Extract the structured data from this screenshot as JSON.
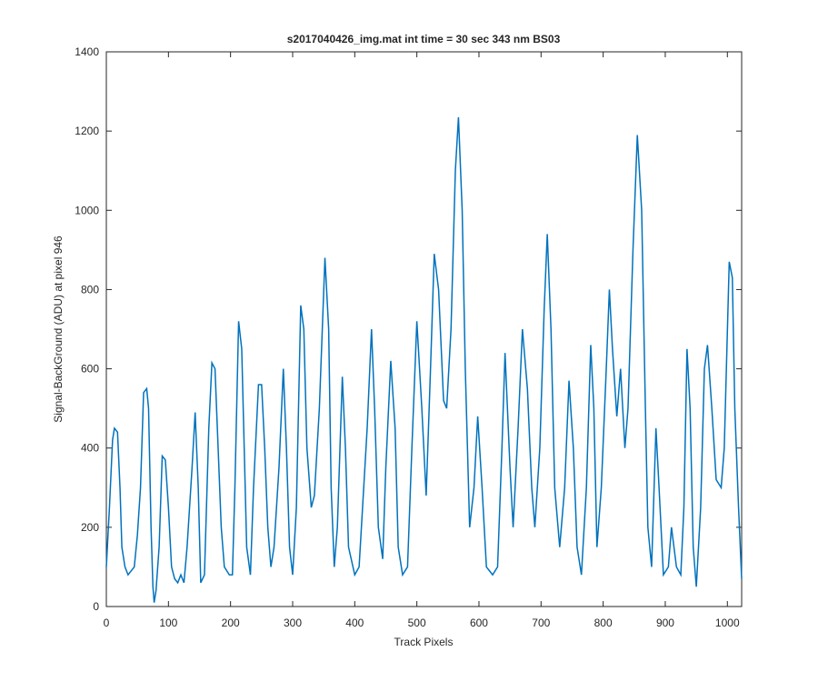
{
  "chart_data": {
    "type": "line",
    "title": "s2017040426_img.mat int time = 30 sec  343 nm BS03",
    "xlabel": "Track Pixels",
    "ylabel": "Signal-BackGround (ADU) at pixel 946",
    "xlim": [
      0,
      1023
    ],
    "ylim": [
      0,
      1400
    ],
    "xticks": [
      0,
      100,
      200,
      300,
      400,
      500,
      600,
      700,
      800,
      900,
      1000
    ],
    "yticks": [
      0,
      200,
      400,
      600,
      800,
      1000,
      1200,
      1400
    ],
    "series": [
      {
        "color": "#0072bd",
        "x": [
          0,
          5,
          10,
          13,
          18,
          22,
          25,
          30,
          35,
          40,
          45,
          50,
          55,
          60,
          65,
          68,
          72,
          75,
          77,
          80,
          85,
          90,
          95,
          100,
          105,
          110,
          115,
          120,
          125,
          130,
          138,
          143,
          148,
          152,
          158,
          165,
          170,
          175,
          180,
          185,
          190,
          198,
          203,
          207,
          213,
          218,
          222,
          226,
          232,
          237,
          245,
          250,
          255,
          260,
          265,
          270,
          278,
          285,
          290,
          295,
          300,
          306,
          313,
          318,
          323,
          330,
          335,
          343,
          352,
          358,
          362,
          367,
          372,
          380,
          385,
          390,
          400,
          407,
          420,
          427,
          432,
          438,
          445,
          450,
          458,
          465,
          470,
          477,
          485,
          492,
          500,
          508,
          515,
          522,
          528,
          535,
          543,
          548,
          555,
          562,
          567,
          573,
          578,
          585,
          592,
          598,
          605,
          612,
          622,
          630,
          637,
          642,
          650,
          655,
          663,
          670,
          678,
          685,
          690,
          698,
          705,
          710,
          716,
          722,
          730,
          738,
          745,
          752,
          758,
          765,
          773,
          780,
          785,
          790,
          797,
          805,
          810,
          815,
          822,
          828,
          835,
          840,
          848,
          855,
          862,
          868,
          872,
          878,
          885,
          890,
          897,
          905,
          910,
          918,
          925,
          930,
          935,
          940,
          945,
          950,
          957,
          963,
          968,
          975,
          982,
          990,
          995,
          1003,
          1008,
          1012,
          1018,
          1023
        ],
        "values": [
          100,
          250,
          420,
          450,
          440,
          300,
          150,
          100,
          80,
          90,
          100,
          180,
          300,
          540,
          550,
          500,
          200,
          50,
          10,
          40,
          150,
          380,
          370,
          250,
          100,
          70,
          60,
          80,
          60,
          150,
          350,
          490,
          300,
          60,
          80,
          450,
          615,
          600,
          400,
          200,
          100,
          80,
          80,
          300,
          720,
          650,
          400,
          150,
          80,
          300,
          560,
          560,
          400,
          200,
          100,
          150,
          350,
          600,
          400,
          150,
          80,
          250,
          760,
          700,
          400,
          250,
          280,
          500,
          880,
          700,
          300,
          100,
          200,
          580,
          400,
          150,
          80,
          100,
          450,
          700,
          500,
          200,
          120,
          350,
          620,
          450,
          150,
          80,
          100,
          400,
          720,
          500,
          280,
          600,
          890,
          800,
          520,
          500,
          700,
          1100,
          1235,
          1000,
          600,
          200,
          300,
          480,
          300,
          100,
          80,
          100,
          400,
          640,
          350,
          200,
          450,
          700,
          550,
          300,
          200,
          400,
          750,
          940,
          700,
          300,
          150,
          300,
          570,
          400,
          150,
          80,
          300,
          660,
          500,
          150,
          300,
          600,
          800,
          650,
          480,
          600,
          400,
          500,
          900,
          1190,
          1000,
          500,
          200,
          100,
          450,
          300,
          80,
          100,
          200,
          100,
          80,
          250,
          650,
          500,
          150,
          50,
          250,
          600,
          660,
          500,
          320,
          300,
          400,
          870,
          830,
          500,
          250,
          70
        ]
      }
    ]
  }
}
